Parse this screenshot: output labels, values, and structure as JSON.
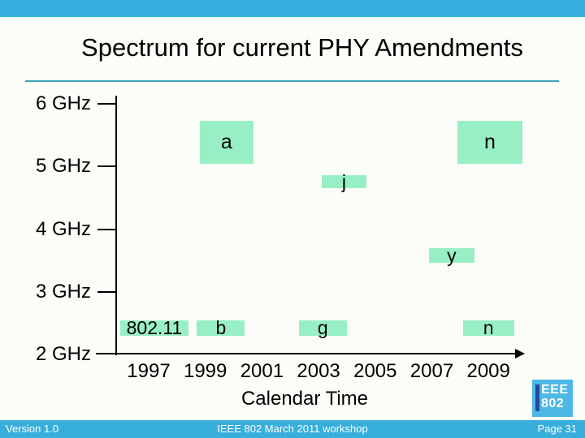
{
  "slide": {
    "title": "Spectrum for current PHY Amendments",
    "footer": {
      "left": "Version 1.0",
      "center": "IEEE 802 March 2011 workshop",
      "right": "Page 31"
    },
    "logo": {
      "line1": "EEE",
      "line2": "802"
    }
  },
  "colors": {
    "header_bar": "#35ADDE",
    "footer_bar": "#38AEDC",
    "title_rule": "#3FA0C1",
    "amendment_box_green": "#99EFC5",
    "logo_background": "#4CB8E5",
    "logo_i_bar": "#26479E",
    "axis": "#000000"
  },
  "chart_data": {
    "type": "scatter",
    "title": "Spectrum for current PHY Amendments",
    "xlabel": "Calendar Time",
    "ylabel": "",
    "xlim": [
      1996,
      2010.5
    ],
    "ylim": [
      2,
      6.15
    ],
    "grid": false,
    "legend": false,
    "x_ticks": [
      {
        "value": 1997,
        "label": "1997"
      },
      {
        "value": 1999,
        "label": "1999"
      },
      {
        "value": 2001,
        "label": "2001"
      },
      {
        "value": 2003,
        "label": "2003"
      },
      {
        "value": 2005,
        "label": "2005"
      },
      {
        "value": 2007,
        "label": "2007"
      },
      {
        "value": 2009,
        "label": "2009"
      }
    ],
    "y_ticks": [
      {
        "value": 6,
        "label": "6 GHz"
      },
      {
        "value": 5,
        "label": "5 GHz"
      },
      {
        "value": 4,
        "label": "4 GHz"
      },
      {
        "value": 3,
        "label": "3 GHz"
      },
      {
        "value": 2,
        "label": "2 GHz"
      }
    ],
    "boxes": [
      {
        "label": "802.11",
        "year_start": 1996.0,
        "year_end": 1998.4,
        "ghz_low": 2.3,
        "ghz_high": 2.55
      },
      {
        "label": "b",
        "year_start": 1998.7,
        "year_end": 2000.4,
        "ghz_low": 2.3,
        "ghz_high": 2.55
      },
      {
        "label": "g",
        "year_start": 2002.3,
        "year_end": 2004.0,
        "ghz_low": 2.3,
        "ghz_high": 2.55
      },
      {
        "label": "n",
        "year_start": 2008.1,
        "year_end": 2009.9,
        "ghz_low": 2.3,
        "ghz_high": 2.55
      },
      {
        "label": "y",
        "year_start": 2006.9,
        "year_end": 2008.5,
        "ghz_low": 3.46,
        "ghz_high": 3.7
      },
      {
        "label": "j",
        "year_start": 2003.1,
        "year_end": 2004.7,
        "ghz_low": 4.65,
        "ghz_high": 4.87
      },
      {
        "label": "a",
        "year_start": 1998.8,
        "year_end": 2000.7,
        "ghz_low": 5.05,
        "ghz_high": 5.73
      },
      {
        "label": "n",
        "year_start": 2007.9,
        "year_end": 2010.2,
        "ghz_low": 5.05,
        "ghz_high": 5.73
      }
    ]
  }
}
